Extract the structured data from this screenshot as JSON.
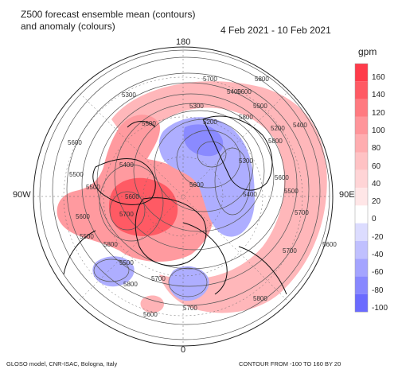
{
  "header": {
    "title_line1": "Z500 forecast ensemble mean (contours)",
    "title_line2": "and anomaly (colours)",
    "date_range": "4 Feb 2021 - 10 Feb 2021"
  },
  "longitude_labels": {
    "top": "180",
    "left": "90W",
    "right": "90E",
    "bottom": "0"
  },
  "footer": {
    "credit": "GLOSO model, CNR-ISAC, Bologna, Italy",
    "contour_note": "CONTOUR FROM -100 TO 160 BY 20"
  },
  "colorbar": {
    "unit": "gpm",
    "ticks": [
      "160",
      "140",
      "120",
      "100",
      "80",
      "60",
      "40",
      "20",
      "0",
      "-20",
      "-40",
      "-60",
      "-80",
      "-100"
    ],
    "colors": [
      "#ff3b4a",
      "#ff5a64",
      "#ff7a80",
      "#ff959a",
      "#ffadb0",
      "#ffc2c4",
      "#ffd4d6",
      "#ffe6e7",
      "#ffffff",
      "#dcdcff",
      "#c0c0ff",
      "#a4a4ff",
      "#8888ff",
      "#6b6bff"
    ]
  },
  "contour_labels": [
    "5700",
    "5800",
    "5600",
    "5500",
    "5400",
    "5200",
    "5300",
    "5500",
    "5600",
    "5400",
    "5300",
    "5200",
    "5700",
    "5600",
    "5500",
    "5800",
    "5600",
    "5500",
    "5700",
    "5800",
    "5600",
    "5500",
    "5400",
    "5300",
    "5800",
    "5700",
    "5600",
    "5500",
    "5600",
    "5400",
    "5500",
    "5700",
    "5800",
    "5600",
    "5700",
    "5800"
  ]
}
